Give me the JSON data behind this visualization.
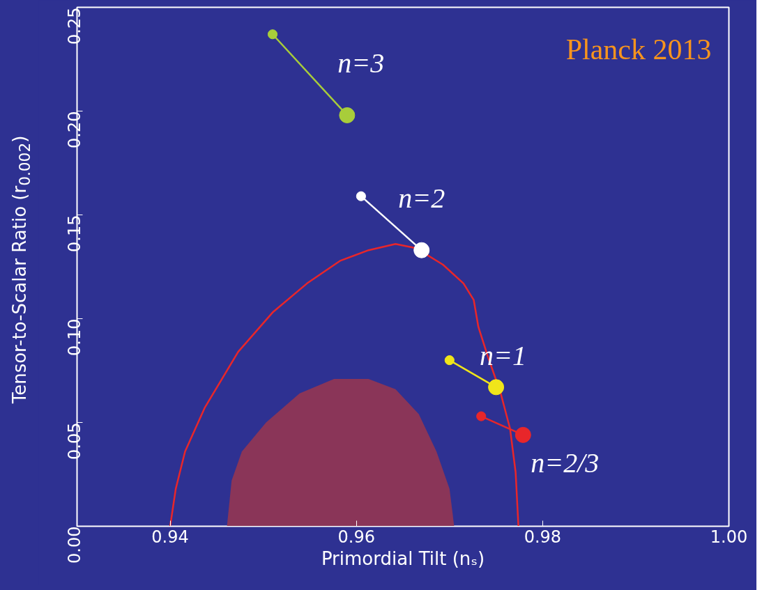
{
  "chart_data": {
    "type": "line",
    "xlabel": "Primordial Tilt (nₛ)",
    "ylabel": "Tensor-to-Scalar Ratio (r$_{0.002}$)",
    "xlim": [
      0.93,
      1.0
    ],
    "xticks": [
      0.94,
      0.96,
      0.98,
      {
        "value": 1.0,
        "label": "1.00"
      }
    ],
    "ylim": [
      0,
      0.25
    ],
    "yticks": [
      {
        "value": 0,
        "label": "0.00"
      },
      0.05,
      {
        "value": 0.1,
        "label": "0.10"
      },
      0.15,
      {
        "value": 0.2,
        "label": "0.20"
      },
      0.25
    ],
    "grid": false,
    "series": [
      {
        "type": "area",
        "color": "#8a3558",
        "x": [
          0.9461,
          0.9466,
          0.9477,
          0.9503,
          0.9539,
          0.9576,
          0.9613,
          0.9642,
          0.9667,
          0.9686,
          0.97,
          0.9705
        ],
        "values": [
          0,
          0.022,
          0.036,
          0.05,
          0.064,
          0.071,
          0.071,
          0.066,
          0.054,
          0.036,
          0.018,
          0
        ]
      },
      {
        "color": "#e8262a",
        "x": [
          0.94,
          0.9406,
          0.9416,
          0.9437,
          0.9473,
          0.951,
          0.9547,
          0.9583,
          0.9613,
          0.9642,
          0.9664,
          0.9693,
          0.9715,
          0.9726,
          0.9731,
          0.9741,
          0.9755,
          0.9765,
          0.9771,
          0.9774
        ],
        "values": [
          0,
          0.018,
          0.036,
          0.057,
          0.084,
          0.103,
          0.117,
          0.128,
          0.133,
          0.136,
          0.134,
          0.126,
          0.117,
          0.109,
          0.096,
          0.082,
          0.064,
          0.047,
          0.026,
          0
        ]
      },
      {
        "color": "#a8cd3a",
        "x": [
          0.951,
          0.959
        ],
        "values": [
          0.237,
          0.198
        ]
      },
      {
        "type": "bubble",
        "color": "#a8cd3a",
        "x": [
          0.951,
          0.959
        ],
        "values": [
          0.237,
          0.198
        ],
        "sizes": [
          0.36,
          1
        ]
      },
      {
        "color": "#ffffff",
        "x": [
          0.9605,
          0.967
        ],
        "values": [
          0.159,
          0.133
        ]
      },
      {
        "type": "bubble",
        "color": "#ffffff",
        "x": [
          0.9605,
          0.967
        ],
        "values": [
          0.159,
          0.133
        ],
        "sizes": [
          0.36,
          1
        ]
      },
      {
        "color": "#f0e51a",
        "x": [
          0.97,
          0.975
        ],
        "values": [
          0.08,
          0.067
        ]
      },
      {
        "type": "bubble",
        "color": "#f0e51a",
        "x": [
          0.97,
          0.975
        ],
        "values": [
          0.08,
          0.067
        ],
        "sizes": [
          0.36,
          1
        ]
      },
      {
        "color": "#e8262a",
        "x": [
          0.9734,
          0.9779
        ],
        "values": [
          0.053,
          0.044
        ]
      },
      {
        "type": "bubble",
        "color": "#e8262a",
        "x": [
          0.9734,
          0.9779
        ],
        "values": [
          0.053,
          0.044
        ],
        "sizes": [
          0.36,
          1
        ]
      }
    ],
    "annotations": [
      {
        "text": "n=3",
        "x": 0.959,
        "y": 0.198
      },
      {
        "text": "n=2",
        "x": 0.967,
        "y": 0.133
      },
      {
        "text": "n=1",
        "x": 0.975,
        "y": 0.067
      },
      {
        "text": "n=2/3",
        "x": 0.9779,
        "y": 0.044
      },
      "Planck 2013"
    ]
  }
}
